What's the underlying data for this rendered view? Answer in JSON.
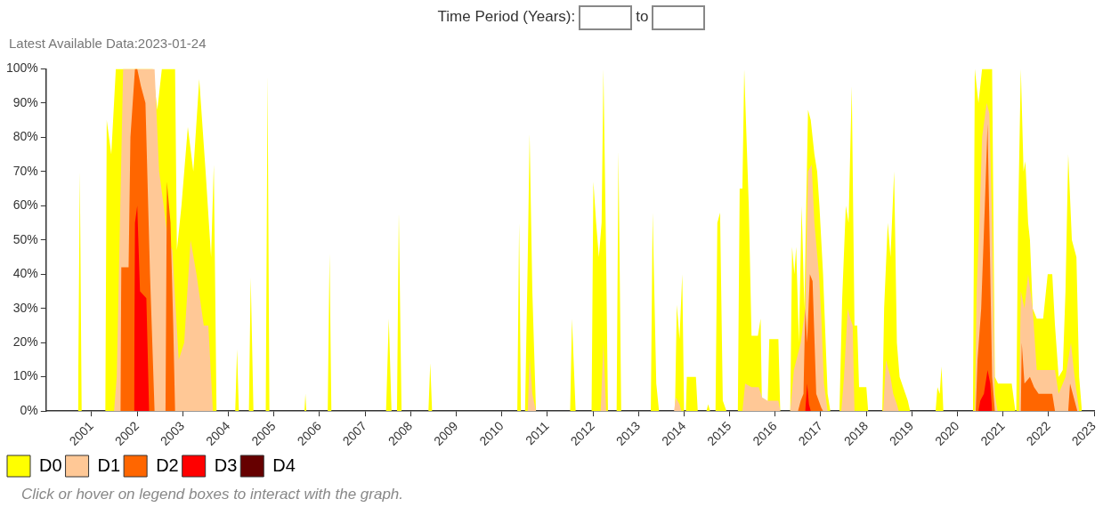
{
  "chart_data": {
    "type": "area",
    "subtitle": "Latest Available Data:2023-01-24",
    "annotations": [
      "Time Period (Years):",
      "to",
      "Click or hover on legend boxes to interact with the graph."
    ],
    "xlim": [
      2000,
      2023
    ],
    "xticks": [
      2001,
      2002,
      2003,
      2004,
      2005,
      2006,
      2007,
      2008,
      2009,
      2010,
      2011,
      2012,
      2013,
      2014,
      2015,
      2016,
      2017,
      2018,
      2019,
      2020,
      2021,
      2022,
      2023
    ],
    "ylim": [
      0,
      100
    ],
    "yticks": [
      {
        "value": 0,
        "label": "0%"
      },
      {
        "value": 10,
        "label": "10%"
      },
      {
        "value": 20,
        "label": "20%"
      },
      {
        "value": 30,
        "label": "30%"
      },
      {
        "value": 40,
        "label": "40%"
      },
      {
        "value": 50,
        "label": "50%"
      },
      {
        "value": 60,
        "label": "60%"
      },
      {
        "value": 70,
        "label": "70%"
      },
      {
        "value": 80,
        "label": "80%"
      },
      {
        "value": 90,
        "label": "90%"
      },
      {
        "value": 100,
        "label": "100%"
      }
    ],
    "grid": false,
    "legend": "bottom left",
    "series": [
      {
        "name": "D0",
        "color": "#ffff00",
        "x": [
          2000.7,
          2000.74,
          2000.78,
          2001.3,
          2001.33,
          2001.43,
          2001.53,
          2002.34,
          2002.44,
          2002.54,
          2002.83,
          2002.87,
          2002.97,
          2003.11,
          2003.23,
          2003.36,
          2003.5,
          2003.62,
          2003.68,
          2003.74,
          2004.15,
          2004.19,
          2004.23,
          2004.45,
          2004.49,
          2004.55,
          2004.82,
          2004.86,
          2004.9,
          2005.67,
          2005.69,
          2005.71,
          2006.18,
          2006.22,
          2006.26,
          2007.46,
          2007.52,
          2007.58,
          2007.7,
          2007.74,
          2007.8,
          2008.39,
          2008.43,
          2008.47,
          2010.34,
          2010.38,
          2010.42,
          2010.51,
          2010.57,
          2010.61,
          2010.67,
          2010.75,
          2011.5,
          2011.54,
          2011.62,
          2011.97,
          2012.01,
          2012.07,
          2012.13,
          2012.19,
          2012.23,
          2012.29,
          2012.33,
          2012.52,
          2012.56,
          2012.62,
          2013.27,
          2013.31,
          2013.39,
          2013.45,
          2013.8,
          2013.84,
          2013.9,
          2013.96,
          2014.0,
          2014.04,
          2014.06,
          2014.26,
          2014.3,
          2014.49,
          2014.53,
          2014.57,
          2014.69,
          2014.73,
          2014.79,
          2014.85,
          2014.93,
          2015.18,
          2015.22,
          2015.28,
          2015.32,
          2015.42,
          2015.48,
          2015.62,
          2015.68,
          2015.71,
          2015.83,
          2015.87,
          2016.07,
          2016.11,
          2016.33,
          2016.37,
          2016.42,
          2016.46,
          2016.52,
          2016.58,
          2016.64,
          2016.68,
          2016.72,
          2016.78,
          2016.86,
          2016.92,
          2016.97,
          2017.05,
          2017.15,
          2017.21,
          2017.41,
          2017.47,
          2017.55,
          2017.61,
          2017.68,
          2017.74,
          2017.8,
          2017.84,
          2018.0,
          2018.04,
          2018.35,
          2018.39,
          2018.47,
          2018.53,
          2018.61,
          2018.67,
          2018.73,
          2018.91,
          2018.96,
          2019.52,
          2019.56,
          2019.61,
          2019.65,
          2019.69,
          2020.34,
          2020.38,
          2020.46,
          2020.54,
          2020.76,
          2020.82,
          2020.89,
          2021.19,
          2021.27,
          2021.29,
          2021.33,
          2021.39,
          2021.45,
          2021.49,
          2021.55,
          2021.59,
          2021.65,
          2021.74,
          2021.88,
          2021.98,
          2022.08,
          2022.14,
          2022.22,
          2022.31,
          2022.37,
          2022.43,
          2022.51,
          2022.61,
          2022.67,
          2022.73
        ],
        "values": [
          0,
          70,
          0,
          0,
          85,
          75,
          100,
          100,
          88,
          100,
          100,
          47,
          60,
          83,
          70,
          97,
          70,
          45,
          72,
          0,
          0,
          18,
          0,
          0,
          39,
          0,
          0,
          98,
          0,
          0,
          5,
          0,
          0,
          46,
          0,
          0,
          27,
          0,
          0,
          58,
          0,
          0,
          14,
          0,
          0,
          55,
          0,
          0,
          45,
          81,
          35,
          0,
          0,
          27,
          0,
          0,
          67,
          55,
          45,
          55,
          100,
          45,
          0,
          0,
          76,
          0,
          0,
          58,
          8,
          0,
          0,
          31,
          21,
          40,
          0,
          0,
          10,
          10,
          0,
          0,
          2,
          0,
          0,
          55,
          58,
          3,
          0,
          0,
          65,
          65,
          100,
          60,
          22,
          22,
          27,
          0,
          0,
          21,
          21,
          0,
          0,
          48,
          40,
          48,
          20,
          60,
          30,
          60,
          88,
          85,
          75,
          70,
          60,
          40,
          5,
          0,
          0,
          33,
          60,
          55,
          95,
          25,
          25,
          7,
          7,
          0,
          0,
          30,
          55,
          45,
          70,
          20,
          10,
          3,
          0,
          0,
          7,
          5,
          13,
          0,
          0,
          100,
          90,
          100,
          100,
          10,
          8,
          8,
          0,
          0,
          56,
          100,
          70,
          73,
          55,
          50,
          30,
          27,
          27,
          40,
          40,
          25,
          10,
          12,
          35,
          75,
          50,
          45,
          10,
          0
        ]
      },
      {
        "name": "D1",
        "color": "#ffc896",
        "x": [
          2001.49,
          2001.55,
          2001.69,
          2002.38,
          2002.48,
          2002.58,
          2002.67,
          2002.77,
          2002.91,
          2003.03,
          2003.17,
          2003.3,
          2003.46,
          2003.56,
          2003.66,
          2010.57,
          2010.61,
          2010.67,
          2010.75,
          2012.17,
          2012.23,
          2012.29,
          2013.78,
          2013.82,
          2013.9,
          2013.94,
          2015.28,
          2015.34,
          2015.48,
          2015.64,
          2015.71,
          2015.83,
          2016.07,
          2016.11,
          2016.33,
          2016.41,
          2016.56,
          2016.66,
          2016.72,
          2016.8,
          2016.86,
          2016.96,
          2017.01,
          2017.07,
          2017.15,
          2017.45,
          2017.51,
          2017.59,
          2017.65,
          2017.7,
          2017.74,
          2018.37,
          2018.43,
          2018.53,
          2018.59,
          2018.67,
          2018.71,
          2020.38,
          2020.42,
          2020.48,
          2020.54,
          2020.64,
          2020.7,
          2020.76,
          2020.82,
          2020.88,
          2021.35,
          2021.39,
          2021.47,
          2021.55,
          2021.65,
          2021.74,
          2021.98,
          2022.14,
          2022.22,
          2022.37,
          2022.49,
          2022.57,
          2022.67
        ],
        "values": [
          0,
          10,
          100,
          100,
          70,
          60,
          50,
          47,
          15,
          20,
          50,
          40,
          25,
          25,
          0,
          0,
          16,
          5,
          0,
          0,
          20,
          0,
          0,
          4,
          2,
          0,
          0,
          8,
          7,
          7,
          4,
          3,
          3,
          0,
          0,
          12,
          20,
          30,
          70,
          72,
          55,
          40,
          28,
          8,
          0,
          0,
          10,
          30,
          27,
          25,
          0,
          0,
          15,
          10,
          5,
          2,
          0,
          0,
          35,
          55,
          80,
          90,
          87,
          55,
          5,
          0,
          0,
          35,
          30,
          40,
          30,
          12,
          12,
          12,
          5,
          10,
          20,
          10,
          0
        ]
      },
      {
        "name": "D2",
        "color": "#ff6600",
        "x": [
          2001.63,
          2001.65,
          2001.81,
          2001.85,
          2001.95,
          2002.0,
          2002.08,
          2002.18,
          2002.28,
          2002.38,
          2002.62,
          2002.65,
          2002.73,
          2002.79,
          2002.83,
          2016.5,
          2016.56,
          2016.62,
          2016.66,
          2016.7,
          2016.76,
          2016.82,
          2016.9,
          2017.01,
          2017.05,
          2020.4,
          2020.44,
          2020.52,
          2020.6,
          2020.66,
          2020.72,
          2020.76,
          2020.82,
          2021.39,
          2021.41,
          2021.47,
          2021.59,
          2021.68,
          2021.78,
          2021.98,
          2022.08,
          2022.14,
          2022.43,
          2022.47,
          2022.53,
          2022.63
        ],
        "values": [
          0,
          42,
          42,
          80,
          100,
          100,
          95,
          90,
          40,
          0,
          0,
          67,
          55,
          25,
          0,
          0,
          3,
          5,
          30,
          20,
          40,
          38,
          5,
          1,
          0,
          0,
          15,
          30,
          60,
          84,
          40,
          10,
          0,
          0,
          20,
          8,
          10,
          7,
          5,
          5,
          5,
          0,
          0,
          8,
          5,
          0
        ]
      },
      {
        "name": "D3",
        "color": "#ff0000",
        "x": [
          2001.93,
          2001.95,
          2002.0,
          2002.06,
          2002.2,
          2002.26,
          2016.66,
          2016.7,
          2016.74,
          2016.78,
          2020.46,
          2020.5,
          2020.58,
          2020.66,
          2020.72,
          2020.76
        ],
        "values": [
          0,
          55,
          60,
          35,
          33,
          0,
          0,
          8,
          2,
          0,
          0,
          3,
          5,
          12,
          8,
          0
        ]
      },
      {
        "name": "D4",
        "color": "#660000"
      }
    ]
  }
}
